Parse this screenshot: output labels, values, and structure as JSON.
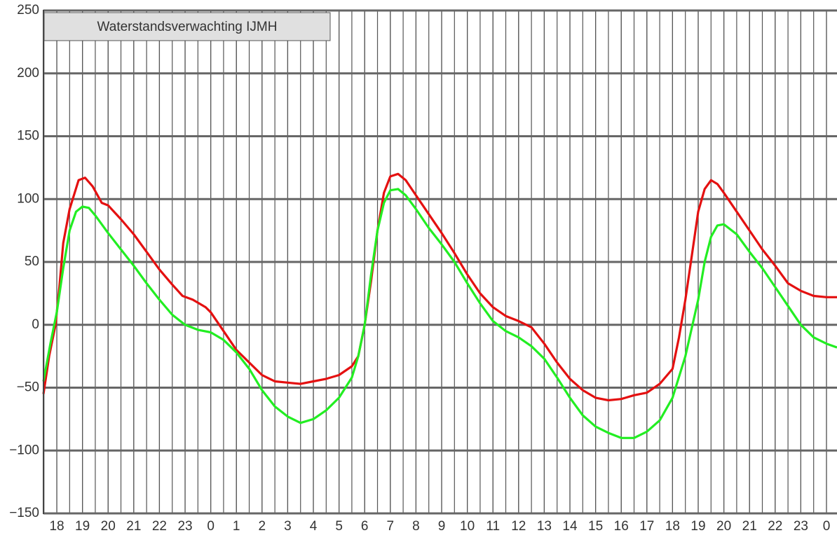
{
  "chart_data": {
    "type": "line",
    "title": "Waterstandsverwachting IJMH",
    "xlim": [
      17.48,
      48.41
    ],
    "xticks": [
      18,
      19,
      20,
      21,
      22,
      23,
      {
        "value": 24,
        "label": "0"
      },
      {
        "value": 25,
        "label": "1"
      },
      {
        "value": 26,
        "label": "2"
      },
      {
        "value": 27,
        "label": "3"
      },
      {
        "value": 28,
        "label": "4"
      },
      {
        "value": 29,
        "label": "5"
      },
      {
        "value": 30,
        "label": "6"
      },
      {
        "value": 31,
        "label": "7"
      },
      {
        "value": 32,
        "label": "8"
      },
      {
        "value": 33,
        "label": "9"
      },
      {
        "value": 34,
        "label": "10"
      },
      {
        "value": 35,
        "label": "11"
      },
      {
        "value": 36,
        "label": "12"
      },
      {
        "value": 37,
        "label": "13"
      },
      {
        "value": 38,
        "label": "14"
      },
      {
        "value": 39,
        "label": "15"
      },
      {
        "value": 40,
        "label": "16"
      },
      {
        "value": 41,
        "label": "17"
      },
      {
        "value": 42,
        "label": "18"
      },
      {
        "value": 43,
        "label": "19"
      },
      {
        "value": 44,
        "label": "20"
      },
      {
        "value": 45,
        "label": "21"
      },
      {
        "value": 46,
        "label": "22"
      },
      {
        "value": 47,
        "label": "23"
      },
      {
        "value": 48,
        "label": "0"
      }
    ],
    "xgrid_step": 0.5,
    "ylim": [
      -150,
      250
    ],
    "yticks": [
      {
        "value": -150,
        "label": "−150"
      },
      {
        "value": -100,
        "label": "−100"
      },
      {
        "value": -50,
        "label": "−50"
      },
      0,
      50,
      100,
      150,
      200,
      250
    ],
    "grid": true,
    "series": [
      {
        "color": "#e41010",
        "x": [
          17.48,
          17.7,
          17.95,
          18.1,
          18.25,
          18.5,
          18.85,
          19.1,
          19.4,
          19.75,
          20.0,
          20.5,
          21.0,
          21.5,
          22.0,
          22.5,
          22.9,
          23.3,
          23.8,
          24.0,
          24.5,
          25.0,
          25.5,
          26.0,
          26.5,
          27.0,
          27.5,
          28.0,
          28.5,
          29.0,
          29.5,
          29.75,
          30.0,
          30.25,
          30.5,
          30.75,
          31.0,
          31.3,
          31.6,
          32.0,
          32.5,
          33.0,
          33.5,
          34.0,
          34.5,
          35.0,
          35.5,
          36.0,
          36.5,
          37.0,
          37.5,
          38.0,
          38.5,
          39.0,
          39.5,
          40.0,
          40.5,
          41.0,
          41.5,
          42.0,
          42.25,
          42.5,
          42.75,
          43.0,
          43.25,
          43.5,
          43.75,
          44.0,
          44.5,
          45.0,
          45.5,
          46.0,
          46.5,
          47.0,
          47.5,
          48.0,
          48.41
        ],
        "values": [
          -55,
          -25,
          0,
          30,
          65,
          92,
          115,
          117,
          110,
          97,
          95,
          84,
          72,
          58,
          44,
          32,
          23,
          20,
          14,
          10,
          -5,
          -20,
          -30,
          -40,
          -45,
          -46,
          -47,
          -45,
          -43,
          -40,
          -33,
          -25,
          0,
          35,
          75,
          105,
          118,
          120,
          115,
          103,
          88,
          73,
          57,
          40,
          25,
          14,
          7,
          3,
          -2,
          -15,
          -30,
          -43,
          -52,
          -58,
          -60,
          -59,
          -56,
          -54,
          -47,
          -35,
          -10,
          20,
          55,
          90,
          108,
          115,
          112,
          105,
          90,
          75,
          60,
          47,
          33,
          27,
          23,
          22,
          22
        ]
      },
      {
        "color": "#22ee22",
        "x": [
          17.48,
          17.75,
          18.0,
          18.25,
          18.5,
          18.75,
          19.0,
          19.25,
          19.5,
          19.75,
          20.0,
          20.5,
          21.0,
          21.5,
          22.0,
          22.5,
          23.0,
          23.5,
          24.0,
          24.5,
          25.0,
          25.5,
          26.0,
          26.5,
          27.0,
          27.5,
          28.0,
          28.5,
          29.0,
          29.5,
          29.75,
          30.0,
          30.25,
          30.5,
          30.75,
          31.0,
          31.3,
          31.6,
          32.0,
          32.5,
          33.0,
          33.5,
          34.0,
          34.5,
          35.0,
          35.5,
          36.0,
          36.5,
          37.0,
          37.5,
          38.0,
          38.5,
          39.0,
          39.5,
          40.0,
          40.5,
          41.0,
          41.5,
          42.0,
          42.5,
          43.0,
          43.25,
          43.5,
          43.75,
          44.0,
          44.5,
          45.0,
          45.5,
          46.0,
          46.5,
          47.0,
          47.5,
          48.0,
          48.41
        ],
        "values": [
          -45,
          -15,
          10,
          45,
          75,
          90,
          94,
          93,
          87,
          80,
          73,
          60,
          47,
          33,
          20,
          8,
          0,
          -4,
          -6,
          -12,
          -22,
          -35,
          -52,
          -65,
          -73,
          -78,
          -75,
          -68,
          -58,
          -42,
          -25,
          0,
          40,
          75,
          97,
          107,
          108,
          103,
          92,
          77,
          64,
          50,
          33,
          17,
          3,
          -5,
          -10,
          -17,
          -27,
          -42,
          -58,
          -72,
          -81,
          -86,
          -90,
          -90,
          -85,
          -76,
          -58,
          -25,
          20,
          50,
          70,
          79,
          80,
          72,
          58,
          45,
          30,
          15,
          0,
          -10,
          -15,
          -18
        ]
      }
    ]
  }
}
